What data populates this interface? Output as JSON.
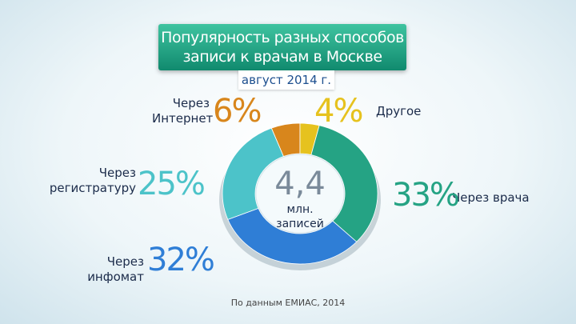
{
  "chart_data": {
    "type": "donut",
    "title": "Популярность разных способов записи к врачам в Москве",
    "subtitle": "август 2014 г.",
    "center_value": "4,4",
    "center_label": "млн. записей",
    "source": "По данным ЕМИАС, 2014",
    "categories": [
      "Через Интернет",
      "Другое",
      "Через врача",
      "Через инфомат",
      "Через регистратуру"
    ],
    "values": [
      6,
      4,
      33,
      32,
      25
    ],
    "value_labels": [
      "6%",
      "4%",
      "33%",
      "32%",
      "25%"
    ],
    "colors": [
      "#d8861c",
      "#e6c21e",
      "#25a384",
      "#2f7ed6",
      "#4cc3c9"
    ]
  }
}
